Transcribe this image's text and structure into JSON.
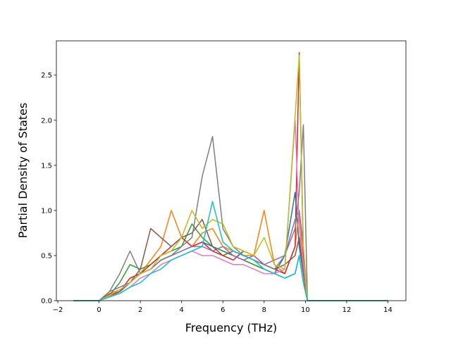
{
  "chart_data": {
    "type": "line",
    "x_label": "Frequency (THz)",
    "y_label": "Partial Density of States",
    "x": [
      -1.25,
      0,
      0.5,
      1,
      1.5,
      2,
      2.5,
      3,
      3.5,
      4,
      4.5,
      5,
      5.5,
      6,
      6.5,
      7,
      7.5,
      8,
      8.5,
      9,
      9.5,
      9.7,
      9.9,
      10.1,
      14
    ],
    "series": [
      {
        "color": "#1f77b4",
        "values": [
          0,
          0,
          0.05,
          0.1,
          0.2,
          0.3,
          0.35,
          0.45,
          0.5,
          0.55,
          0.6,
          0.65,
          0.6,
          0.55,
          0.5,
          0.45,
          0.4,
          0.35,
          0.3,
          0.5,
          1.2,
          0.6,
          0.3,
          0,
          0
        ]
      },
      {
        "color": "#ff7f0e",
        "values": [
          0,
          0,
          0.08,
          0.12,
          0.2,
          0.3,
          0.45,
          0.6,
          1.0,
          0.7,
          0.6,
          0.75,
          0.8,
          0.6,
          0.55,
          0.5,
          0.5,
          1.0,
          0.4,
          0.3,
          0.6,
          1.0,
          0.4,
          0,
          0
        ]
      },
      {
        "color": "#2ca02c",
        "values": [
          0,
          0,
          0.06,
          0.2,
          0.4,
          0.35,
          0.4,
          0.5,
          0.55,
          0.6,
          0.85,
          0.7,
          0.6,
          0.55,
          0.5,
          0.45,
          0.4,
          0.35,
          0.3,
          0.25,
          0.3,
          0.5,
          0.2,
          0,
          0
        ]
      },
      {
        "color": "#d62728",
        "values": [
          0,
          0,
          0.05,
          0.1,
          0.25,
          0.3,
          0.4,
          0.5,
          0.6,
          0.7,
          0.6,
          0.65,
          0.55,
          0.5,
          0.45,
          0.55,
          0.5,
          0.4,
          0.35,
          0.3,
          0.6,
          2.75,
          0.5,
          0,
          0
        ]
      },
      {
        "color": "#9467bd",
        "values": [
          0,
          0,
          0.1,
          0.15,
          0.2,
          0.3,
          0.35,
          0.45,
          0.5,
          0.55,
          0.6,
          0.6,
          0.55,
          0.6,
          0.5,
          0.45,
          0.5,
          0.4,
          0.45,
          0.5,
          0.9,
          1.0,
          0.6,
          0,
          0
        ]
      },
      {
        "color": "#8c564b",
        "values": [
          0,
          0,
          0.07,
          0.1,
          0.2,
          0.35,
          0.8,
          0.7,
          0.6,
          0.7,
          0.75,
          0.9,
          0.6,
          0.5,
          0.55,
          0.5,
          0.45,
          0.4,
          0.35,
          0.4,
          0.5,
          0.7,
          0.3,
          0,
          0
        ]
      },
      {
        "color": "#e377c2",
        "values": [
          0,
          0,
          0.05,
          0.08,
          0.15,
          0.25,
          0.3,
          0.4,
          0.45,
          0.5,
          0.55,
          0.5,
          0.5,
          0.45,
          0.4,
          0.4,
          0.35,
          0.3,
          0.3,
          0.35,
          2.0,
          0.8,
          0.4,
          0,
          0
        ]
      },
      {
        "color": "#7f7f7f",
        "values": [
          0,
          0,
          0.1,
          0.3,
          0.55,
          0.3,
          0.35,
          0.45,
          0.5,
          0.6,
          0.7,
          1.38,
          1.82,
          0.8,
          0.6,
          0.5,
          0.45,
          0.4,
          0.35,
          0.5,
          0.8,
          1.2,
          1.95,
          0,
          0
        ]
      },
      {
        "color": "#bcbd22",
        "values": [
          0,
          0,
          0.06,
          0.12,
          0.2,
          0.3,
          0.35,
          0.5,
          0.55,
          0.7,
          1.0,
          0.8,
          0.9,
          0.85,
          0.6,
          0.55,
          0.5,
          0.7,
          0.4,
          0.35,
          2.05,
          2.72,
          0.6,
          0,
          0
        ]
      },
      {
        "color": "#17becf",
        "values": [
          0,
          0,
          0.04,
          0.08,
          0.15,
          0.2,
          0.3,
          0.35,
          0.45,
          0.5,
          0.55,
          0.6,
          1.1,
          0.65,
          0.55,
          0.5,
          0.45,
          0.35,
          0.3,
          0.25,
          0.3,
          0.5,
          0.2,
          0,
          0
        ]
      }
    ],
    "xlim": [
      -2.07,
      14.87
    ],
    "xticks": [
      {
        "value": -2,
        "label": "−2"
      },
      0,
      2,
      4,
      6,
      8,
      10,
      12,
      14
    ],
    "ylim": [
      0,
      2.88
    ],
    "yticks": [
      {
        "value": 0,
        "label": "0.0"
      },
      0.5,
      {
        "value": 1,
        "label": "1.0"
      },
      1.5,
      {
        "value": 2,
        "label": "2.0"
      },
      2.5
    ]
  }
}
